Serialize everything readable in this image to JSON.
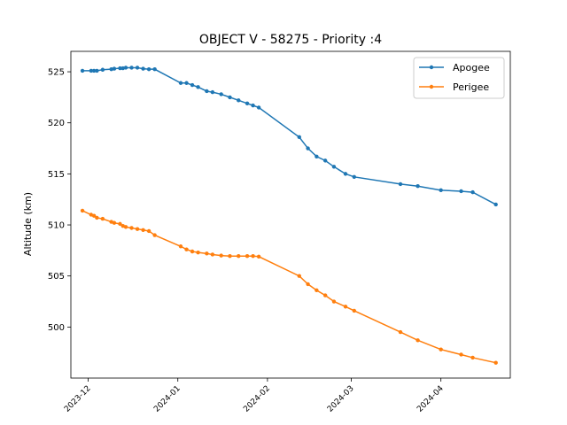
{
  "chart_data": {
    "type": "line",
    "title": "OBJECT V - 58275 - Priority :4",
    "xlabel": "",
    "ylabel": "Altitude (km)",
    "x_ticks": [
      "2023-12",
      "2024-01",
      "2024-02",
      "2024-03",
      "2024-04"
    ],
    "y_ticks": [
      500,
      505,
      510,
      515,
      520,
      525
    ],
    "xlim": [
      "2023-11-25",
      "2024-04-25"
    ],
    "ylim": [
      495,
      527
    ],
    "grid": false,
    "legend_position": "top-right",
    "series": [
      {
        "name": "Apogee",
        "color": "#1f77b4",
        "points": [
          [
            "2023-11-29",
            525.1
          ],
          [
            "2023-12-02",
            525.1
          ],
          [
            "2023-12-03",
            525.1
          ],
          [
            "2023-12-04",
            525.1
          ],
          [
            "2023-12-06",
            525.2
          ],
          [
            "2023-12-09",
            525.25
          ],
          [
            "2023-12-10",
            525.3
          ],
          [
            "2023-12-12",
            525.35
          ],
          [
            "2023-12-13",
            525.35
          ],
          [
            "2023-12-14",
            525.4
          ],
          [
            "2023-12-16",
            525.4
          ],
          [
            "2023-12-18",
            525.4
          ],
          [
            "2023-12-20",
            525.3
          ],
          [
            "2023-12-22",
            525.25
          ],
          [
            "2023-12-24",
            525.25
          ],
          [
            "2024-01-02",
            523.9
          ],
          [
            "2024-01-04",
            523.9
          ],
          [
            "2024-01-06",
            523.7
          ],
          [
            "2024-01-08",
            523.5
          ],
          [
            "2024-01-11",
            523.1
          ],
          [
            "2024-01-13",
            523.0
          ],
          [
            "2024-01-16",
            522.8
          ],
          [
            "2024-01-19",
            522.5
          ],
          [
            "2024-01-22",
            522.2
          ],
          [
            "2024-01-25",
            521.9
          ],
          [
            "2024-01-27",
            521.7
          ],
          [
            "2024-01-29",
            521.5
          ],
          [
            "2024-02-12",
            518.6
          ],
          [
            "2024-02-15",
            517.5
          ],
          [
            "2024-02-18",
            516.7
          ],
          [
            "2024-02-21",
            516.3
          ],
          [
            "2024-02-24",
            515.7
          ],
          [
            "2024-02-28",
            515.0
          ],
          [
            "2024-03-02",
            514.7
          ],
          [
            "2024-03-18",
            514.0
          ],
          [
            "2024-03-24",
            513.8
          ],
          [
            "2024-04-01",
            513.4
          ],
          [
            "2024-04-08",
            513.3
          ],
          [
            "2024-04-12",
            513.2
          ],
          [
            "2024-04-20",
            512.0
          ]
        ]
      },
      {
        "name": "Perigee",
        "color": "#ff7f0e",
        "points": [
          [
            "2023-11-29",
            511.4
          ],
          [
            "2023-12-02",
            511.0
          ],
          [
            "2023-12-03",
            510.9
          ],
          [
            "2023-12-04",
            510.7
          ],
          [
            "2023-12-06",
            510.6
          ],
          [
            "2023-12-09",
            510.3
          ],
          [
            "2023-12-10",
            510.2
          ],
          [
            "2023-12-12",
            510.1
          ],
          [
            "2023-12-13",
            509.9
          ],
          [
            "2023-12-14",
            509.8
          ],
          [
            "2023-12-16",
            509.7
          ],
          [
            "2023-12-18",
            509.6
          ],
          [
            "2023-12-20",
            509.5
          ],
          [
            "2023-12-22",
            509.4
          ],
          [
            "2023-12-24",
            509.0
          ],
          [
            "2024-01-02",
            507.9
          ],
          [
            "2024-01-04",
            507.6
          ],
          [
            "2024-01-06",
            507.4
          ],
          [
            "2024-01-08",
            507.3
          ],
          [
            "2024-01-11",
            507.2
          ],
          [
            "2024-01-13",
            507.1
          ],
          [
            "2024-01-16",
            507.0
          ],
          [
            "2024-01-19",
            506.95
          ],
          [
            "2024-01-22",
            506.95
          ],
          [
            "2024-01-25",
            506.95
          ],
          [
            "2024-01-27",
            506.95
          ],
          [
            "2024-01-29",
            506.9
          ],
          [
            "2024-02-12",
            505.0
          ],
          [
            "2024-02-15",
            504.2
          ],
          [
            "2024-02-18",
            503.6
          ],
          [
            "2024-02-21",
            503.1
          ],
          [
            "2024-02-24",
            502.5
          ],
          [
            "2024-02-28",
            502.0
          ],
          [
            "2024-03-02",
            501.6
          ],
          [
            "2024-03-18",
            499.5
          ],
          [
            "2024-03-24",
            498.7
          ],
          [
            "2024-04-01",
            497.8
          ],
          [
            "2024-04-08",
            497.3
          ],
          [
            "2024-04-12",
            497.0
          ],
          [
            "2024-04-20",
            496.5
          ]
        ]
      }
    ]
  }
}
